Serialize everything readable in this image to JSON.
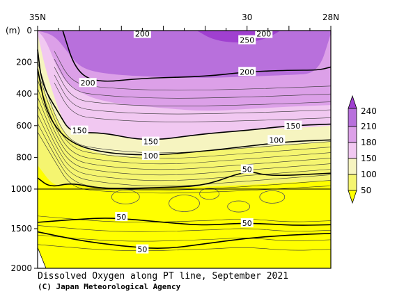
{
  "chart_data": {
    "type": "heatmap",
    "title": "Dissolved Oxygen along PT line, September 2021",
    "credit": "(C) Japan Meteorological Agency",
    "y_unit_label": "(m)",
    "x_ticks": [
      {
        "value": 35,
        "label": "35N"
      },
      {
        "value": 30,
        "label": "30"
      },
      {
        "value": 28,
        "label": "28N"
      }
    ],
    "xlim": [
      35,
      28
    ],
    "y_ticks_upper": [
      0,
      200,
      400,
      600,
      800,
      1000
    ],
    "y_ticks_lower": [
      1500,
      2000
    ],
    "ylim": [
      0,
      2000
    ],
    "y_break": 1000,
    "colorbar": {
      "levels": [
        50,
        100,
        150,
        180,
        210,
        240
      ],
      "colors": {
        "below_50": "#ffff00",
        "50_100": "#f5f570",
        "100_150": "#f6f4c0",
        "150_180": "#f1c8f1",
        "180_210": "#dca0e8",
        "210_240": "#b870dc",
        "above_240": "#a040d0"
      }
    },
    "contour_labels": [
      {
        "text": "200",
        "lat": 32.5,
        "depth": 20
      },
      {
        "text": "250",
        "lat": 30.0,
        "depth": 60
      },
      {
        "text": "200",
        "lat": 29.6,
        "depth": 20
      },
      {
        "text": "200",
        "lat": 30.0,
        "depth": 260
      },
      {
        "text": "200",
        "lat": 33.8,
        "depth": 330
      },
      {
        "text": "150",
        "lat": 34.0,
        "depth": 630
      },
      {
        "text": "150",
        "lat": 32.3,
        "depth": 700
      },
      {
        "text": "150",
        "lat": 28.9,
        "depth": 600
      },
      {
        "text": "100",
        "lat": 29.3,
        "depth": 690
      },
      {
        "text": "100",
        "lat": 32.3,
        "depth": 790
      },
      {
        "text": "50",
        "lat": 30.0,
        "depth": 875
      },
      {
        "text": "50",
        "lat": 33.0,
        "depth": 1350
      },
      {
        "text": "50",
        "lat": 30.0,
        "depth": 1430
      },
      {
        "text": "50",
        "lat": 32.5,
        "depth": 1760
      }
    ]
  }
}
